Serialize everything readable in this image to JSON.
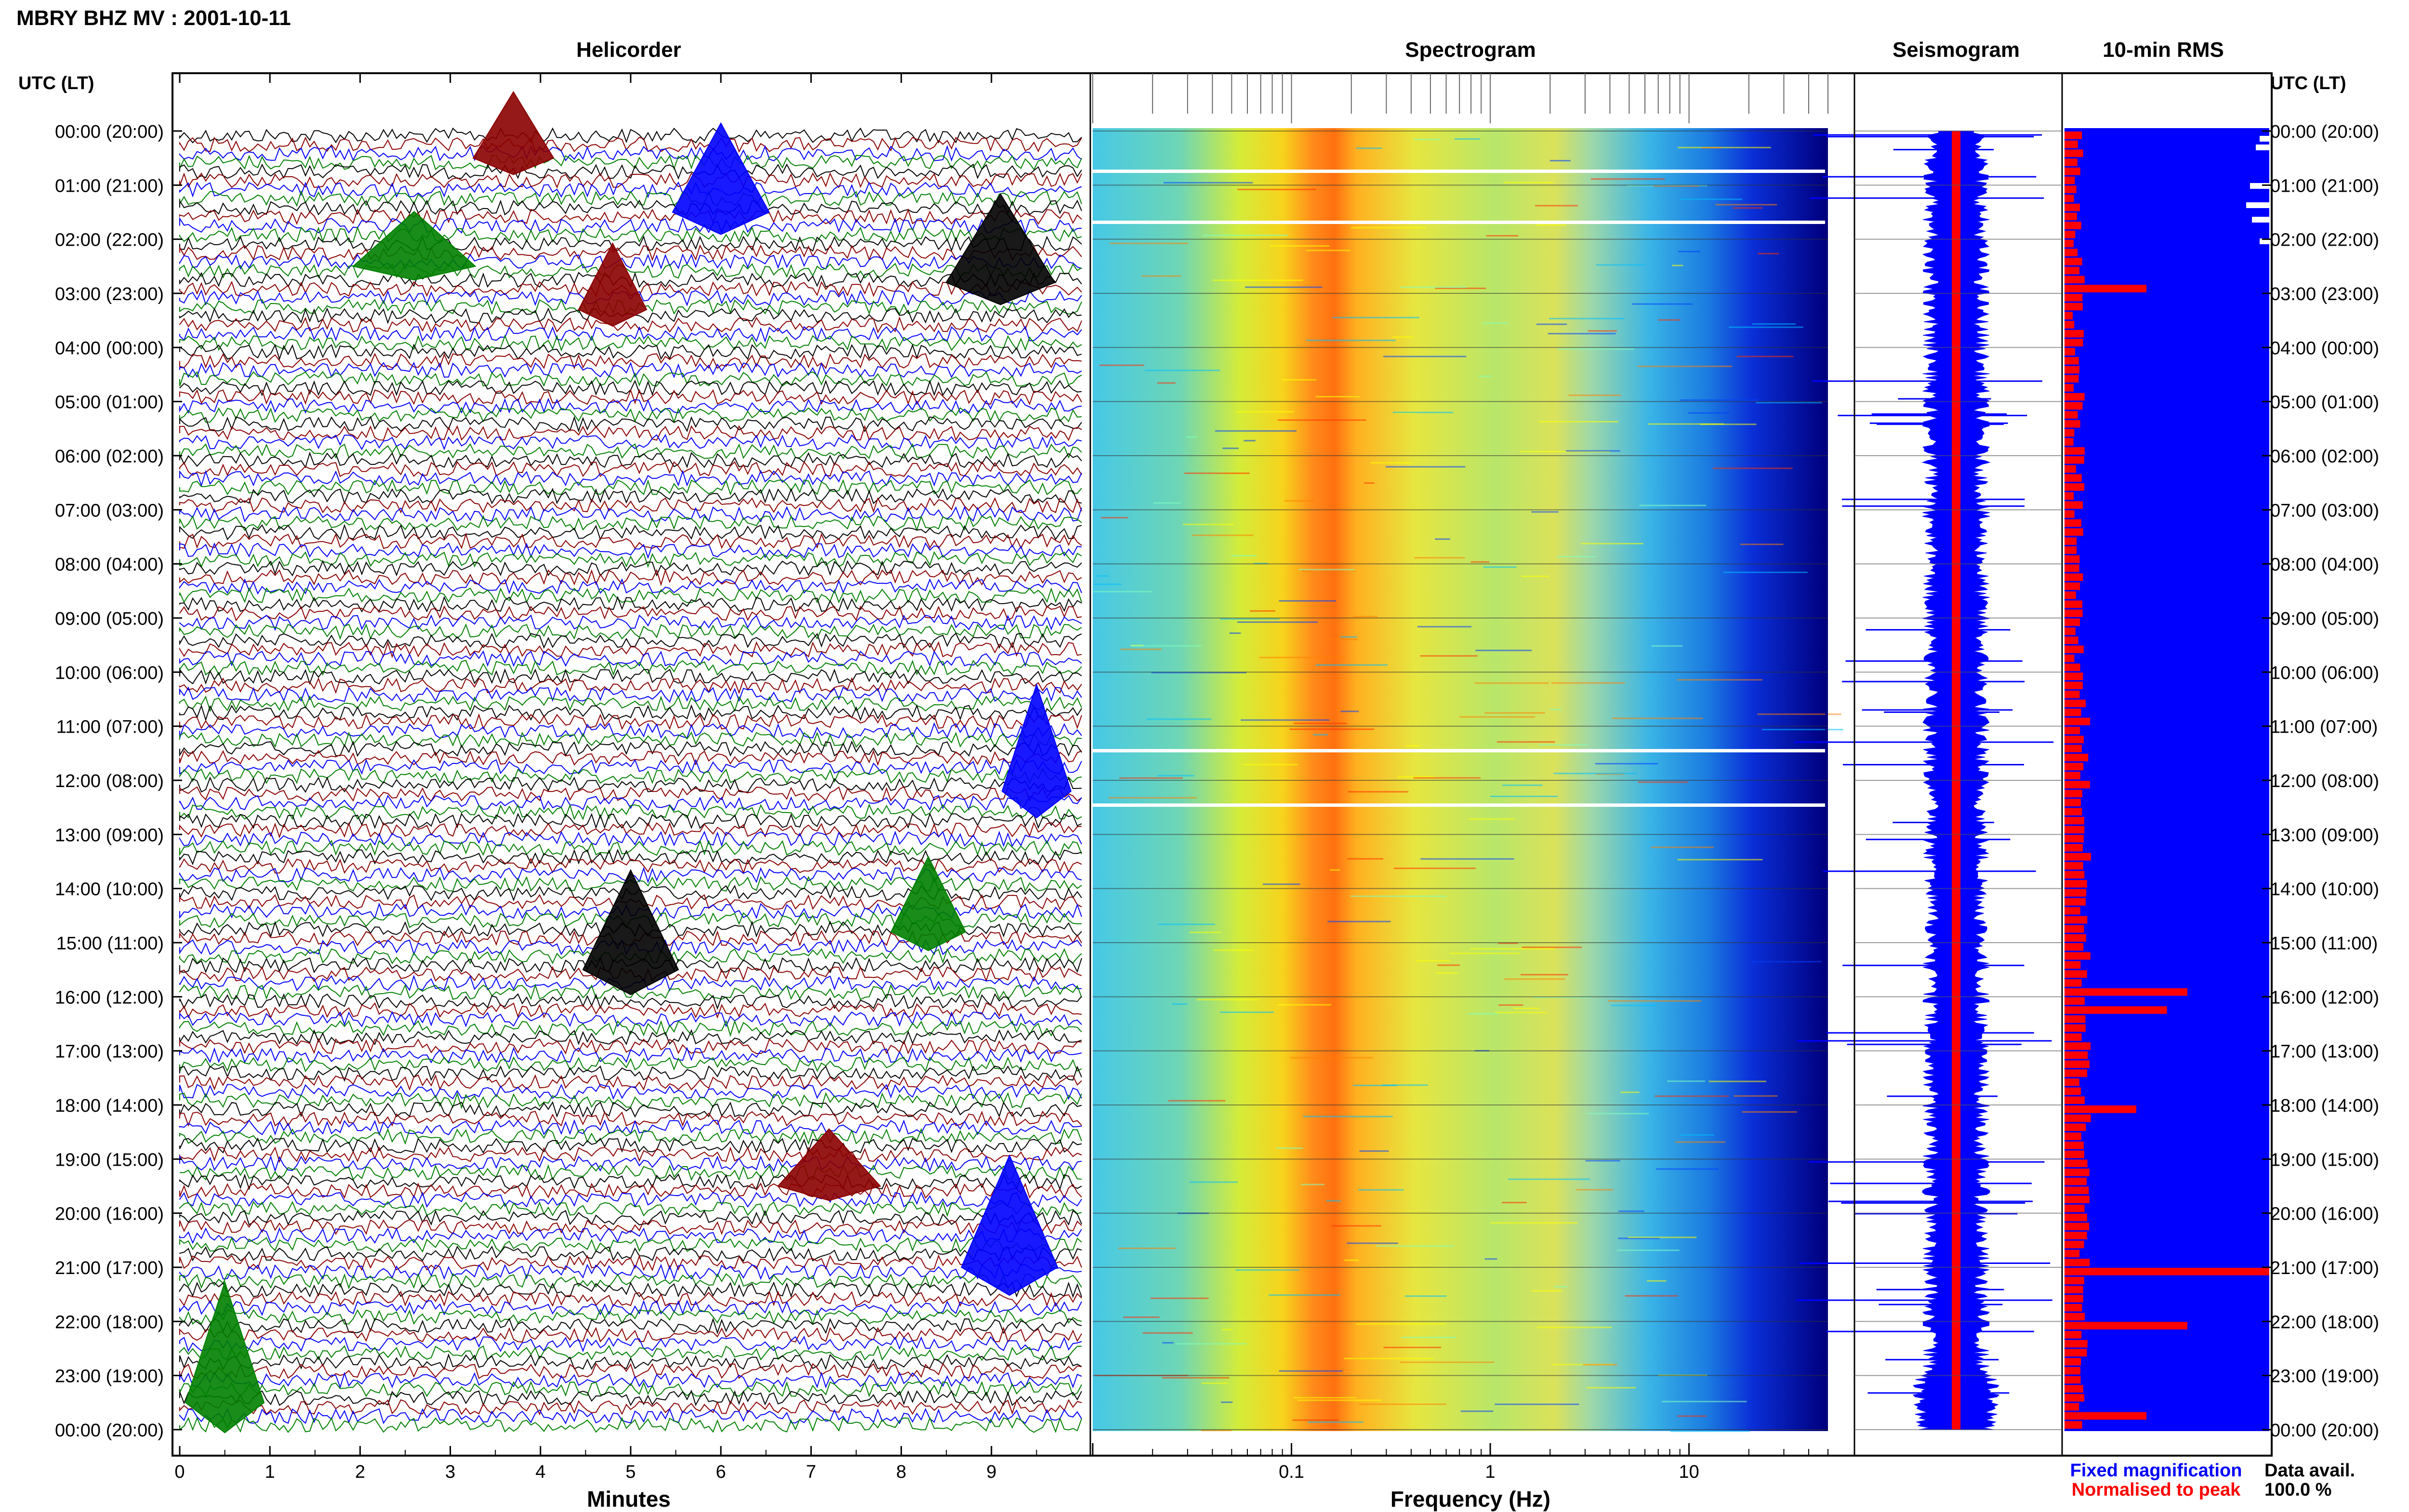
{
  "header": {
    "station_title": "MBRY BHZ MV : 2001-10-11",
    "utc_header_left": "UTC (LT)",
    "utc_header_right": "UTC (LT)"
  },
  "panels": {
    "helicorder": "Helicorder",
    "spectrogram": "Spectrogram",
    "seismogram": "Seismogram",
    "rms": "10-min RMS"
  },
  "axes": {
    "minutes_label": "Minutes",
    "frequency_label": "Frequency (Hz)",
    "minute_ticks": [
      "0",
      "1",
      "2",
      "3",
      "4",
      "5",
      "6",
      "7",
      "8",
      "9"
    ],
    "frequency_ticks": [
      "0.1",
      "1",
      "10"
    ]
  },
  "time_labels": [
    "00:00 (20:00)",
    "01:00 (21:00)",
    "02:00 (22:00)",
    "03:00 (23:00)",
    "04:00 (00:00)",
    "05:00 (01:00)",
    "06:00 (02:00)",
    "07:00 (03:00)",
    "08:00 (04:00)",
    "09:00 (05:00)",
    "10:00 (06:00)",
    "11:00 (07:00)",
    "12:00 (08:00)",
    "13:00 (09:00)",
    "14:00 (10:00)",
    "15:00 (11:00)",
    "16:00 (12:00)",
    "17:00 (13:00)",
    "18:00 (14:00)",
    "19:00 (15:00)",
    "20:00 (16:00)",
    "21:00 (17:00)",
    "22:00 (18:00)",
    "23:00 (19:00)",
    "00:00 (20:00)"
  ],
  "legend": {
    "fixed": "Fixed magnification",
    "normalised": "Normalised to peak",
    "fixed_color": "#0000ff",
    "normalised_color": "#ff0000"
  },
  "data_availability": {
    "label": "Data avail.",
    "value": "100.0 %"
  },
  "colors": {
    "helicorder_traces": [
      "#000000",
      "#8b0000",
      "#0000ff",
      "#008000"
    ],
    "seismogram_fixed": "#0000ff",
    "seismogram_normalised": "#ff0000",
    "rms_background": "#0000ff",
    "rms_bars": "#ff0000"
  },
  "chart_data": [
    {
      "type": "line",
      "title": "Helicorder",
      "xlabel": "Minutes",
      "ylabel": "UTC (LT)",
      "xlim": [
        0,
        10
      ],
      "x_ticks": [
        0,
        1,
        2,
        3,
        4,
        5,
        6,
        7,
        8,
        9
      ],
      "lines_per_hour": 6,
      "hours": 24,
      "series": [
        {
          "name": "trace",
          "color_cycle": [
            "#000000",
            "#8b0000",
            "#0000ff",
            "#008000"
          ]
        }
      ],
      "notable_events_minutes_by_hour": [
        {
          "hour": 0.5,
          "minute": 3.7
        },
        {
          "hour": 1.5,
          "minute": 6.0
        },
        {
          "hour": 2.5,
          "minute": 2.6
        },
        {
          "hour": 2.8,
          "minute": 9.1
        },
        {
          "hour": 3.3,
          "minute": 4.8
        },
        {
          "hour": 12.2,
          "minute": 9.5
        },
        {
          "hour": 14.8,
          "minute": 8.3
        },
        {
          "hour": 15.5,
          "minute": 5.0
        },
        {
          "hour": 19.5,
          "minute": 7.2
        },
        {
          "hour": 21.0,
          "minute": 9.2
        },
        {
          "hour": 23.5,
          "minute": 0.5
        }
      ]
    },
    {
      "type": "heatmap",
      "title": "Spectrogram",
      "xlabel": "Frequency (Hz)",
      "x_scale": "log",
      "xlim": [
        0.01,
        50
      ],
      "x_ticks": [
        0.1,
        1,
        10
      ],
      "ylabel": "UTC (LT)",
      "dominant_band_hz": [
        0.15,
        0.35
      ],
      "secondary_band_hz": [
        2.5,
        4.5
      ],
      "colormap": [
        "#00007f",
        "#0000ff",
        "#00bfff",
        "#7fffbf",
        "#ffff00",
        "#ff7f00",
        "#ff0000"
      ]
    },
    {
      "type": "line",
      "title": "Seismogram",
      "series": [
        {
          "name": "Fixed magnification",
          "color": "#0000ff"
        },
        {
          "name": "Normalised to peak",
          "color": "#ff0000"
        }
      ]
    },
    {
      "type": "bar",
      "title": "10-min RMS",
      "orientation": "horizontal",
      "x_scale": "relative",
      "bars": 144,
      "peaks_hour": [
        2.9,
        15.8,
        16.2,
        18.0,
        21.0,
        22.0,
        23.6
      ],
      "peak_fraction": [
        0.4,
        0.6,
        0.5,
        0.35,
        1.0,
        0.6,
        0.4
      ]
    }
  ]
}
